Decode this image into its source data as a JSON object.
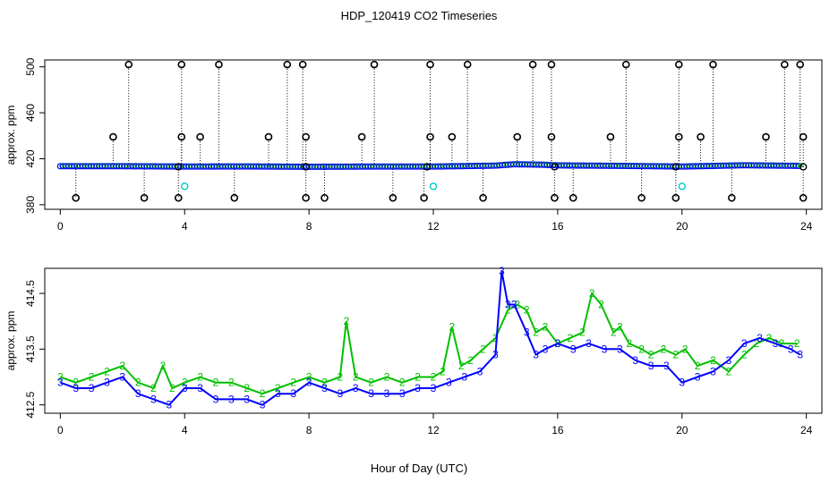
{
  "title": "HDP_120419  CO2 Timeseries",
  "xlabel": "Hour of Day (UTC)",
  "colors": {
    "series_2": "#00c000",
    "series_3": "#0000ff",
    "flag_high_low": "#000000",
    "flag_cyan": "#00c8c8",
    "axis": "#000000"
  },
  "chart_data": [
    {
      "type": "scatter",
      "ylabel": "approx. ppm",
      "xlim": [
        -0.5,
        24.5
      ],
      "ylim": [
        376,
        506
      ],
      "x_ticks": [
        "0",
        "4",
        "8",
        "12",
        "16",
        "20",
        "24"
      ],
      "y_ticks": [
        "380",
        "420",
        "460",
        "500"
      ],
      "grid": false,
      "baseline": {
        "name": "",
        "x": [
          0,
          2,
          4,
          6,
          8,
          10,
          12,
          14,
          14.6,
          15.5,
          16,
          18,
          20,
          22,
          23.8
        ],
        "y": [
          413.5,
          413.5,
          413.2,
          413.3,
          413.0,
          413.2,
          413.2,
          414.0,
          415.2,
          414.8,
          414.2,
          413.8,
          413.2,
          414.3,
          413.8
        ]
      },
      "flags_high": {
        "x": [
          2.2,
          3.9,
          5.1,
          7.3,
          7.8,
          10.1,
          11.9,
          13.1,
          15.2,
          15.8,
          18.2,
          19.9,
          21.0,
          23.3,
          23.8
        ],
        "y": [
          502,
          502,
          502,
          502,
          502,
          502,
          502,
          502,
          502,
          502,
          502,
          502,
          502,
          502,
          502
        ]
      },
      "flags_mid": {
        "x": [
          1.7,
          3.9,
          4.5,
          6.7,
          7.9,
          9.7,
          11.9,
          12.6,
          14.7,
          15.8,
          17.7,
          19.9,
          20.6,
          22.7,
          23.9
        ],
        "y": [
          439,
          439,
          439,
          439,
          439,
          439,
          439,
          439,
          439,
          439,
          439,
          439,
          439,
          439,
          439
        ]
      },
      "flags_low": {
        "x": [
          0.5,
          2.7,
          3.8,
          5.6,
          7.9,
          8.5,
          10.7,
          11.7,
          13.6,
          15.9,
          16.5,
          18.7,
          19.8,
          21.6,
          23.9
        ],
        "y": [
          386,
          386,
          386,
          386,
          386,
          386,
          386,
          386,
          386,
          386,
          386,
          386,
          386,
          386,
          386
        ]
      },
      "flags_cyan": {
        "x": [
          4.0,
          12.0,
          20.0
        ],
        "y": [
          396,
          396,
          396
        ]
      }
    },
    {
      "type": "line",
      "ylabel": "approx. ppm",
      "xlim": [
        -0.5,
        24.5
      ],
      "ylim": [
        412.35,
        414.95
      ],
      "x_ticks": [
        "0",
        "4",
        "8",
        "12",
        "16",
        "20",
        "24"
      ],
      "y_ticks": [
        "412.5",
        "413.5",
        "414.5"
      ],
      "grid": false,
      "series": [
        {
          "name": "2",
          "marker": "2",
          "x": [
            0,
            0.5,
            1,
            1.5,
            2,
            2.5,
            3,
            3.3,
            3.6,
            4,
            4.5,
            5,
            5.5,
            6,
            6.5,
            7,
            7.5,
            8,
            8.5,
            9,
            9.2,
            9.5,
            10,
            10.5,
            11,
            11.5,
            12,
            12.3,
            12.6,
            12.9,
            13.2,
            13.6,
            14,
            14.4,
            14.7,
            15,
            15.3,
            15.6,
            16,
            16.4,
            16.8,
            17.1,
            17.4,
            17.8,
            18,
            18.3,
            18.7,
            19,
            19.4,
            19.8,
            20.1,
            20.5,
            21,
            21.5,
            22,
            22.4,
            22.8,
            23.2,
            23.7
          ],
          "y": [
            413.0,
            412.9,
            413.0,
            413.1,
            413.2,
            412.9,
            412.8,
            413.2,
            412.8,
            412.9,
            413.0,
            412.9,
            412.9,
            412.8,
            412.7,
            412.8,
            412.9,
            413.0,
            412.9,
            413.0,
            414.0,
            413.0,
            412.9,
            413.0,
            412.9,
            413.0,
            413.0,
            413.1,
            413.9,
            413.2,
            413.3,
            413.5,
            413.7,
            414.2,
            414.3,
            414.2,
            413.8,
            413.9,
            413.6,
            413.7,
            413.8,
            414.5,
            414.3,
            413.8,
            413.9,
            413.6,
            413.5,
            413.4,
            413.5,
            413.4,
            413.5,
            413.2,
            413.3,
            413.1,
            413.4,
            413.6,
            413.7,
            413.6,
            413.6
          ]
        },
        {
          "name": "3",
          "marker": "3",
          "x": [
            0,
            0.5,
            1,
            1.5,
            2,
            2.5,
            3,
            3.5,
            4,
            4.5,
            5,
            5.5,
            6,
            6.5,
            7,
            7.5,
            8,
            8.5,
            9,
            9.5,
            10,
            10.5,
            11,
            11.5,
            12,
            12.5,
            13,
            13.5,
            14,
            14.2,
            14.4,
            14.6,
            15,
            15.3,
            15.6,
            16,
            16.5,
            17,
            17.5,
            18,
            18.5,
            19,
            19.5,
            20,
            20.5,
            21,
            21.5,
            22,
            22.5,
            23,
            23.5,
            23.8
          ],
          "y": [
            412.9,
            412.8,
            412.8,
            412.9,
            413.0,
            412.7,
            412.6,
            412.5,
            412.8,
            412.8,
            412.6,
            412.6,
            412.6,
            412.5,
            412.7,
            412.7,
            412.9,
            412.8,
            412.7,
            412.8,
            412.7,
            412.7,
            412.7,
            412.8,
            412.8,
            412.9,
            413.0,
            413.1,
            413.4,
            414.9,
            414.3,
            414.3,
            413.8,
            413.4,
            413.5,
            413.6,
            413.5,
            413.6,
            413.5,
            413.5,
            413.3,
            413.2,
            413.2,
            412.9,
            413.0,
            413.1,
            413.3,
            413.6,
            413.7,
            413.6,
            413.5,
            413.4
          ]
        }
      ]
    }
  ]
}
